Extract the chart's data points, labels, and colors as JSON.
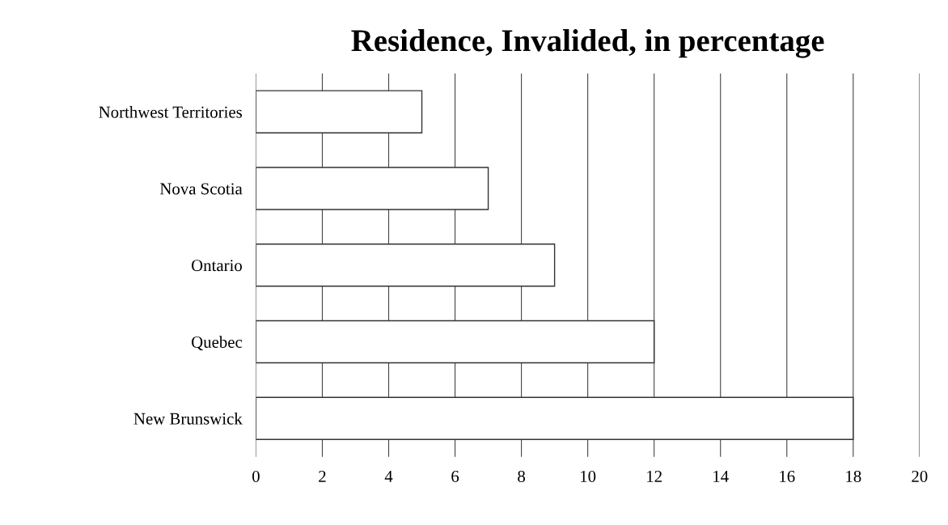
{
  "chart_data": {
    "type": "bar",
    "orientation": "horizontal",
    "title": "Residence, Invalided, in percentage",
    "categories": [
      "Northwest Territories",
      "Nova Scotia",
      "Ontario",
      "Quebec",
      "New Brunswick"
    ],
    "series": [
      {
        "color": "#ffffff",
        "values": [
          5,
          7,
          9,
          12,
          18
        ]
      }
    ],
    "xlim": [
      0,
      20
    ],
    "xticks": [
      0,
      2,
      4,
      6,
      8,
      10,
      12,
      14,
      16,
      18,
      20
    ],
    "grid": "x"
  }
}
